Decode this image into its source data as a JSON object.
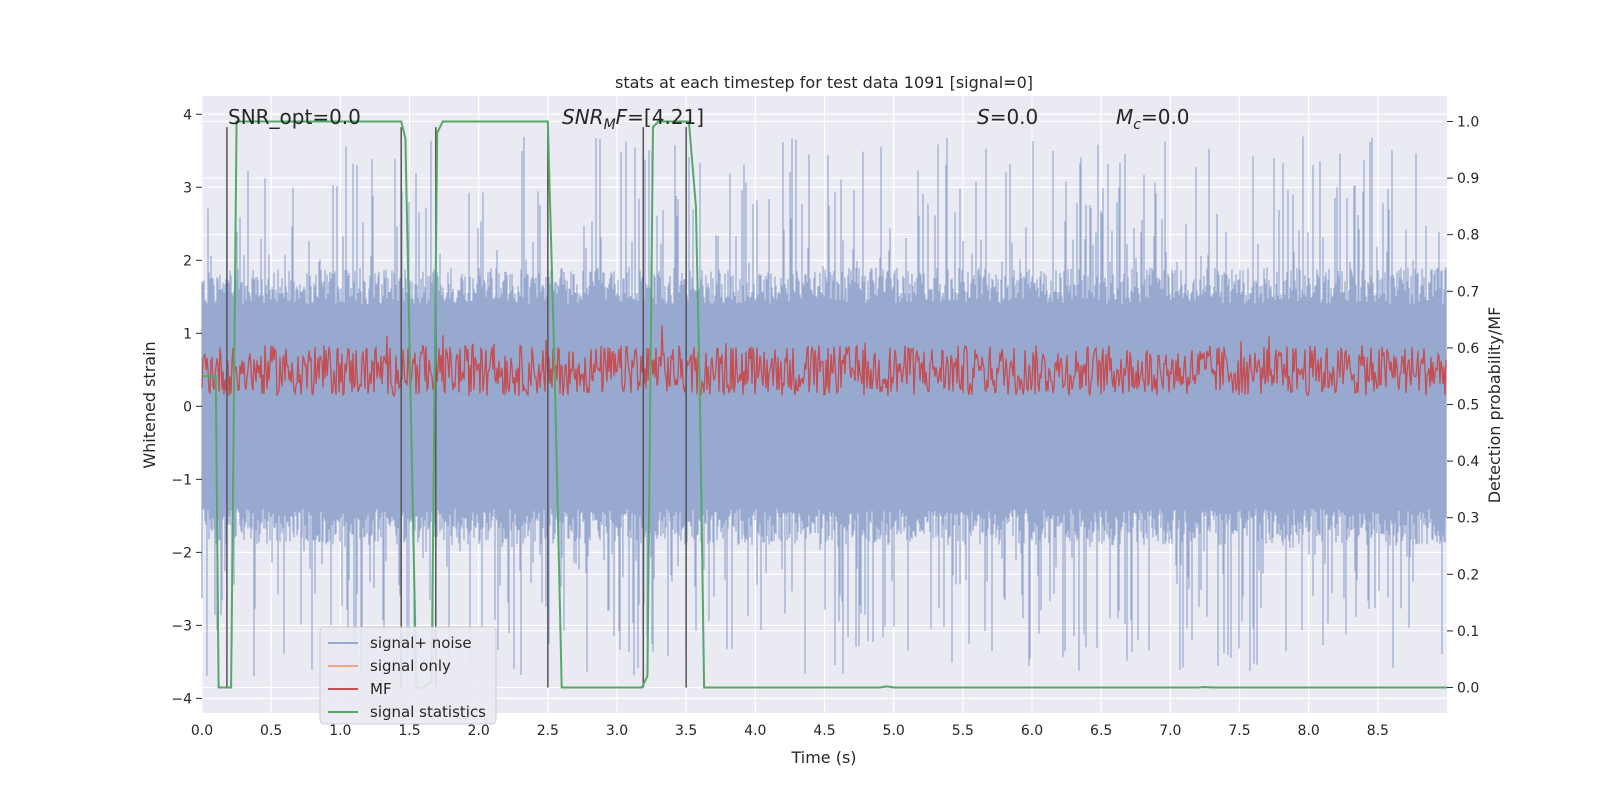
{
  "chart_data": {
    "type": "line",
    "title": "stats at each timestep for test data 1091 [signal=0]",
    "xlabel": "Time (s)",
    "ylabel_left": "Whitened strain",
    "ylabel_right": "Detection probability/MF",
    "xlim": [
      0.0,
      9.0
    ],
    "ylim_left": [
      -4.2,
      4.25
    ],
    "ylim_right": [
      -0.045,
      1.045
    ],
    "xticks": [
      "0.0",
      "0.5",
      "1.0",
      "1.5",
      "2.0",
      "2.5",
      "3.0",
      "3.5",
      "4.0",
      "4.5",
      "5.0",
      "5.5",
      "6.0",
      "6.5",
      "7.0",
      "7.5",
      "8.0",
      "8.5"
    ],
    "yticks_left": [
      "4",
      "3",
      "2",
      "1",
      "0",
      "−1",
      "−2",
      "−3",
      "−4"
    ],
    "yticks_right": [
      "1.0",
      "0.9",
      "0.8",
      "0.7",
      "0.6",
      "0.5",
      "0.4",
      "0.3",
      "0.2",
      "0.1",
      "0.0"
    ],
    "grid": true,
    "legend_position": "lower-left",
    "annotations": {
      "snr_opt": "SNR_opt=0.0",
      "snr_mf": "SNR_MF=[4.21]",
      "s": "S=0.0",
      "mc": "M_c=0.0"
    },
    "series": [
      {
        "name": "signal+ noise",
        "color": "#98a9d0",
        "axis": "left",
        "description_level": "noise band approx ±1.6 with spikes to ±3.8"
      },
      {
        "name": "signal only",
        "color": "#eba98b",
        "axis": "left",
        "values": [
          0
        ]
      },
      {
        "name": "MF",
        "color": "#c44e52",
        "axis": "right",
        "baseline": 0.55,
        "range": [
          0.5,
          0.65
        ]
      },
      {
        "name": "signal statistics",
        "color": "#55a868",
        "axis": "right",
        "x": [
          0.0,
          0.1,
          0.12,
          0.18,
          0.21,
          0.25,
          1.44,
          1.47,
          1.55,
          1.6,
          1.66,
          1.7,
          1.74,
          1.78,
          2.5,
          2.55,
          2.6,
          3.18,
          3.22,
          3.26,
          3.3,
          3.52,
          3.57,
          3.6,
          3.63,
          4.9,
          4.95,
          5.0,
          7.2,
          7.25,
          7.3,
          9.0
        ],
        "y": [
          0.55,
          0.55,
          0.0,
          0.0,
          0.0,
          1.0,
          1.0,
          0.97,
          0.0,
          0.0,
          0.01,
          0.98,
          1.0,
          1.0,
          1.0,
          0.55,
          0.0,
          0.0,
          0.02,
          0.99,
          1.0,
          1.0,
          0.85,
          0.5,
          0.0,
          0.0,
          0.002,
          0.0,
          0.0,
          0.001,
          0.0,
          0.0
        ]
      }
    ],
    "vlines_x": [
      0.18,
      1.44,
      1.69,
      2.5,
      3.19,
      3.5
    ]
  },
  "legend": {
    "items": [
      "signal+ noise",
      "signal only",
      "MF",
      "signal statistics"
    ],
    "colors": [
      "#98a9d0",
      "#eba98b",
      "#c44e52",
      "#55a868"
    ]
  }
}
